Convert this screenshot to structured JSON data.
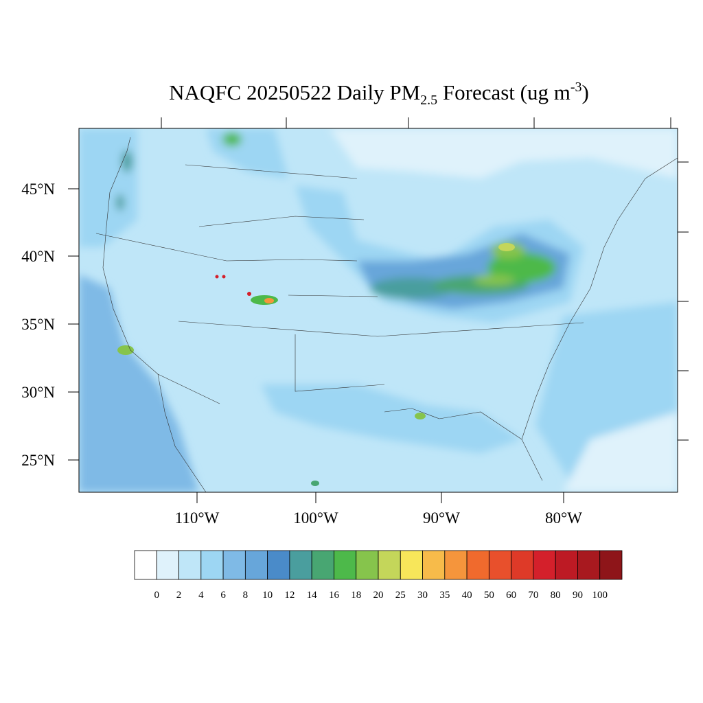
{
  "title": {
    "parts": [
      "NAQFC 20250522 Daily PM",
      "2.5",
      " Forecast (ug m",
      "-3",
      ")"
    ]
  },
  "map": {
    "lat_labels": [
      "45°N",
      "40°N",
      "35°N",
      "30°N",
      "25°N"
    ],
    "lon_labels": [
      "110°W",
      "100°W",
      "90°W",
      "80°W"
    ]
  },
  "colorbar": {
    "labels": [
      "0",
      "2",
      "4",
      "6",
      "8",
      "10",
      "12",
      "14",
      "16",
      "18",
      "20",
      "25",
      "30",
      "35",
      "40",
      "50",
      "60",
      "70",
      "80",
      "90",
      "100"
    ],
    "colors": [
      "#ffffff",
      "#dff2fb",
      "#bfe6f8",
      "#9dd6f3",
      "#7fbae6",
      "#67a6da",
      "#4a8bc9",
      "#4a9e9e",
      "#48a672",
      "#4db94a",
      "#86c44c",
      "#c4d65a",
      "#f7e65a",
      "#f7bb4a",
      "#f5953c",
      "#f06a2d",
      "#e8502c",
      "#de3a28",
      "#d4202b",
      "#bd1a24",
      "#a8191f",
      "#8e1519"
    ]
  }
}
